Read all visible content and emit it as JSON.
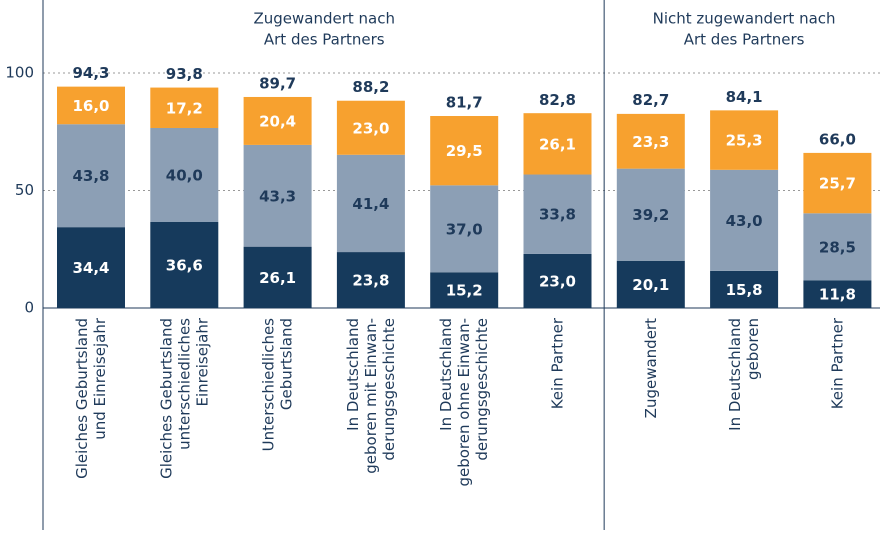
{
  "chart_data": {
    "type": "stacked_bar",
    "groups": [
      {
        "title": [
          "Zugewandert nach",
          "Art des Partners"
        ],
        "count": 6
      },
      {
        "title": [
          "Nicht zugewandert nach",
          "Art des Partners"
        ],
        "count": 3
      }
    ],
    "categories": [
      [
        "Gleiches Geburtsland",
        "und Einreisejahr"
      ],
      [
        "Gleiches Geburtsland",
        "unterschiedliches",
        "Einreisejahr"
      ],
      [
        "Unterschiedliches",
        "Geburtsland"
      ],
      [
        "In Deutschland",
        "geboren mit Einwan-",
        "derungsgeschichte"
      ],
      [
        "In Deutschland",
        "geboren ohne Einwan-",
        "derungsgeschichte"
      ],
      [
        "Kein Partner"
      ],
      [
        "Zugewandert"
      ],
      [
        "In Deutschland",
        "geboren"
      ],
      [
        "Kein Partner"
      ]
    ],
    "series": [
      {
        "color": "#163a5c",
        "label_color": "#ffffff",
        "values": [
          34.4,
          36.6,
          26.1,
          23.8,
          15.2,
          23.0,
          20.1,
          15.8,
          11.8
        ],
        "value_labels": [
          "34,4",
          "36,6",
          "26,1",
          "23,8",
          "15,2",
          "23,0",
          "20,1",
          "15,8",
          "11,8"
        ]
      },
      {
        "color": "#8c9fb5",
        "label_color": "#1f3a5a",
        "values": [
          43.8,
          40.0,
          43.3,
          41.4,
          37.0,
          33.8,
          39.2,
          43.0,
          28.5
        ],
        "value_labels": [
          "43,8",
          "40,0",
          "43,3",
          "41,4",
          "37,0",
          "33,8",
          "39,2",
          "43,0",
          "28,5"
        ]
      },
      {
        "color": "#f7a12f",
        "label_color": "#ffffff",
        "values": [
          16.0,
          17.2,
          20.4,
          23.0,
          29.5,
          26.1,
          23.3,
          25.3,
          25.7
        ],
        "value_labels": [
          "16,0",
          "17,2",
          "20,4",
          "23,0",
          "29,5",
          "26,1",
          "23,3",
          "25,3",
          "25,7"
        ]
      }
    ],
    "totals": {
      "values": [
        94.3,
        93.8,
        89.7,
        88.2,
        81.7,
        82.8,
        82.7,
        84.1,
        66.0
      ],
      "value_labels": [
        "94,3",
        "93,8",
        "89,7",
        "88,2",
        "81,7",
        "82,8",
        "82,7",
        "84,1",
        "66,0"
      ]
    },
    "ylim": [
      0,
      130
    ],
    "yticks": [
      0,
      50,
      100
    ],
    "grid": true
  }
}
